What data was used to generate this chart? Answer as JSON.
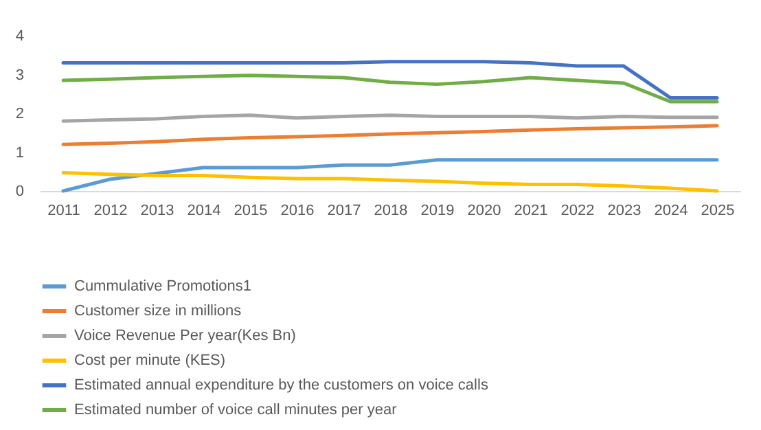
{
  "chart_data": {
    "type": "line",
    "categories": [
      "2011",
      "2012",
      "2013",
      "2014",
      "2015",
      "2016",
      "2017",
      "2018",
      "2019",
      "2020",
      "2021",
      "2022",
      "2023",
      "2024",
      "2025"
    ],
    "ylim": [
      0,
      4
    ],
    "yticks": [
      0,
      1,
      2,
      3,
      4
    ],
    "legend": "bottom",
    "series": [
      {
        "name": "Cummulative  Promotions1",
        "color": "#5b9bd5",
        "values": [
          0,
          0.3,
          0.45,
          0.6,
          0.6,
          0.6,
          0.67,
          0.67,
          0.8,
          0.8,
          0.8,
          0.8,
          0.8,
          0.8,
          0.8
        ]
      },
      {
        "name": "Customer size in millions",
        "color": "#ed7d31",
        "values": [
          1.2,
          1.23,
          1.27,
          1.33,
          1.37,
          1.4,
          1.43,
          1.47,
          1.5,
          1.53,
          1.57,
          1.6,
          1.63,
          1.65,
          1.68
        ]
      },
      {
        "name": "Voice Revenue Per year(Kes Bn)",
        "color": "#a5a5a5",
        "values": [
          1.8,
          1.83,
          1.86,
          1.92,
          1.95,
          1.88,
          1.92,
          1.95,
          1.92,
          1.92,
          1.92,
          1.88,
          1.92,
          1.9,
          1.9
        ]
      },
      {
        "name": "Cost per minute (KES)",
        "color": "#ffc000",
        "values": [
          0.47,
          0.43,
          0.4,
          0.4,
          0.35,
          0.32,
          0.32,
          0.28,
          0.25,
          0.2,
          0.17,
          0.17,
          0.13,
          0.07,
          0
        ]
      },
      {
        "name": "Estimated annual expenditure by the customers on voice calls",
        "color": "#4472c4",
        "values": [
          3.3,
          3.3,
          3.3,
          3.3,
          3.3,
          3.3,
          3.3,
          3.33,
          3.33,
          3.33,
          3.3,
          3.22,
          3.22,
          2.4,
          2.4
        ]
      },
      {
        "name": "Estimated number of voice call minutes per year",
        "color": "#70ad47",
        "values": [
          2.85,
          2.88,
          2.92,
          2.95,
          2.98,
          2.95,
          2.92,
          2.8,
          2.75,
          2.82,
          2.92,
          2.85,
          2.78,
          2.3,
          2.3
        ]
      }
    ]
  }
}
